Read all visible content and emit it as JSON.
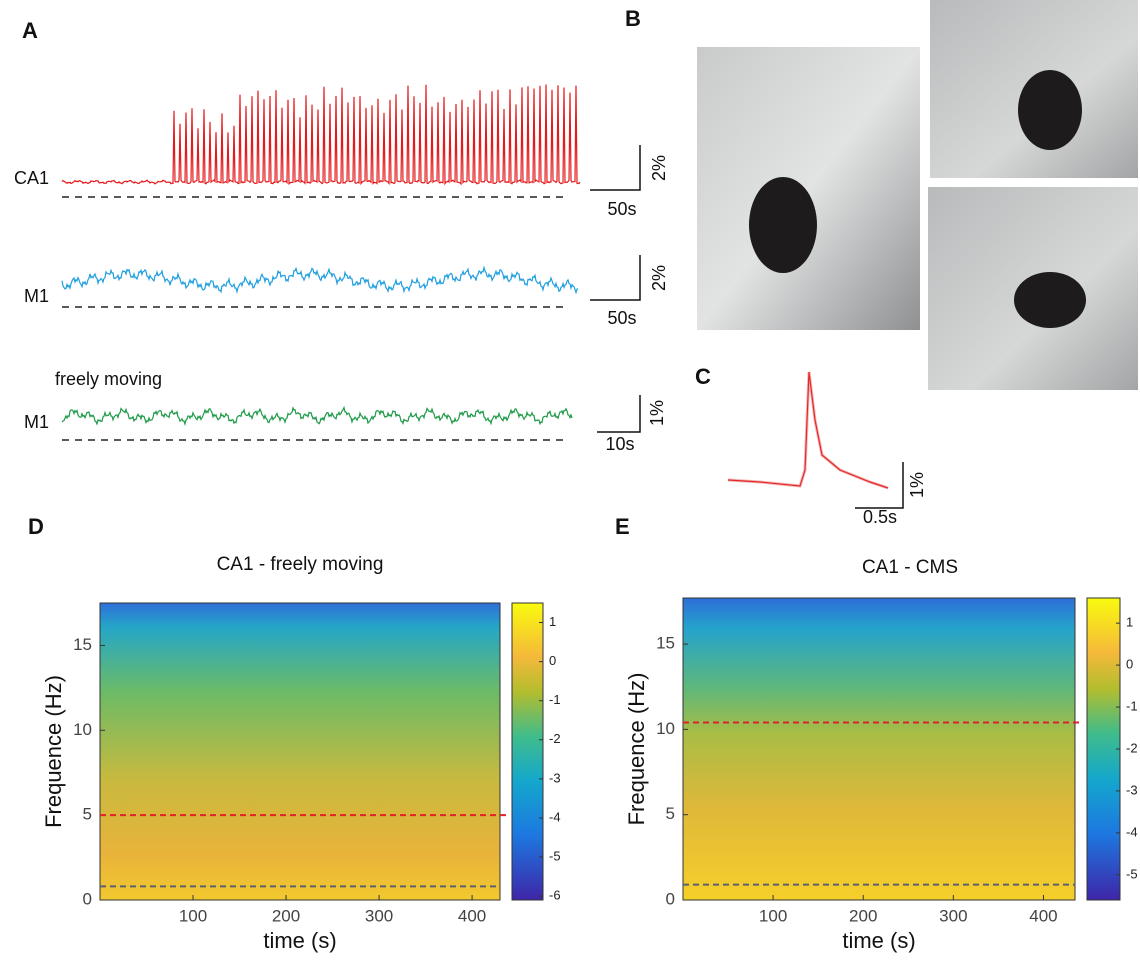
{
  "panels": {
    "a": "A",
    "b": "B",
    "c": "C",
    "d": "D",
    "e": "E"
  },
  "panel_a": {
    "traces": [
      {
        "label": "CA1",
        "scale_y": "2%",
        "scale_x": "50s"
      },
      {
        "label": "M1",
        "scale_y": "2%",
        "scale_x": "50s"
      },
      {
        "label": "M1",
        "note": "freely moving",
        "scale_y": "1%",
        "scale_x": "10s"
      }
    ]
  },
  "panel_c": {
    "scale_y": "1%",
    "scale_x": "0.5s"
  },
  "chart_data": [
    {
      "type": "heatmap",
      "title": "CA1 - freely moving",
      "x_label": "time (s)",
      "y_label": "Frequence (Hz)",
      "xlim": [
        0,
        430
      ],
      "ylim": [
        0,
        17.5
      ],
      "xticks": [
        100,
        200,
        300,
        400
      ],
      "yticks": [
        0,
        5,
        10,
        15
      ],
      "colorbar": {
        "lim": [
          -6.1,
          1.5
        ],
        "ticks": [
          1,
          0,
          -1,
          -2,
          -3,
          -4,
          -5,
          -6
        ]
      },
      "reference_lines": [
        {
          "value": 5,
          "color": "#e0202a"
        },
        {
          "value": 0.8,
          "color": "#5a6070"
        }
      ]
    },
    {
      "type": "heatmap",
      "title": "CA1 - CMS",
      "x_label": "time (s)",
      "y_label": "Frequence (Hz)",
      "xlim": [
        0,
        435
      ],
      "ylim": [
        0,
        17.7
      ],
      "xticks": [
        100,
        200,
        300,
        400
      ],
      "yticks": [
        0,
        5,
        10,
        15
      ],
      "colorbar": {
        "lim": [
          -5.6,
          1.6
        ],
        "ticks": [
          1,
          0,
          -1,
          -2,
          -3,
          -4,
          -5
        ]
      },
      "reference_lines": [
        {
          "value": 10.4,
          "color": "#e0202a"
        },
        {
          "value": 0.9,
          "color": "#5a6070"
        }
      ]
    }
  ]
}
